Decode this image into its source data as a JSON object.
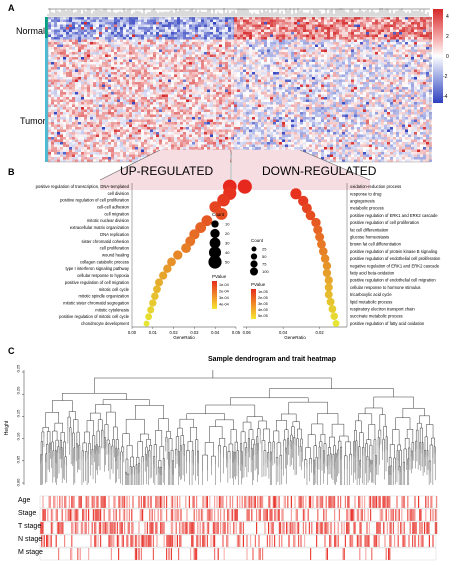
{
  "panel_a": {
    "letter": "A",
    "row_labels": {
      "normal": "Normal",
      "tumor": "Tumor"
    },
    "colorbar_ticks": [
      "4",
      "2",
      "0",
      "-2",
      "-4"
    ],
    "group_colors": {
      "normal": "#00a087",
      "tumor": "#4dbbd5"
    },
    "heatmap_colors": {
      "high": "#d62728",
      "mid": "#ffffff",
      "low": "#2d3fbf"
    }
  },
  "panel_b": {
    "letter": "B",
    "up_title": "UP-REGULATED",
    "down_title": "DOWN-REGULATED",
    "legend_count_title": "Count",
    "legend_pvalue_title": "PValue",
    "up_count_ticks": [
      "10",
      "20",
      "30",
      "40",
      "50"
    ],
    "up_pvalue_ticks": [
      "1e-04",
      "2e-04",
      "3e-04",
      "4e-04"
    ],
    "down_count_ticks": [
      "25",
      "50",
      "75",
      "100"
    ],
    "down_pvalue_ticks": [
      "1e-05",
      "2e-05",
      "3e-05",
      "4e-05",
      "5e-05"
    ]
  },
  "panel_c": {
    "letter": "C",
    "title": "Sample dendrogram and trait heatmap",
    "ylabel": "Height",
    "yticks": [
      "0.25",
      "0.20",
      "0.15",
      "0.10",
      "0.05",
      "0.00"
    ],
    "trait_rows": [
      "Age",
      "Stage",
      "T stage",
      "N stage",
      "M stage"
    ],
    "trait_color": "#e8322a"
  },
  "chart_data": [
    {
      "type": "scatter",
      "panel": "B-left",
      "xlabel": "GeneRatio",
      "x_ticks": [
        "0.00",
        "0.01",
        "0.02",
        "0.03",
        "0.04",
        "0.05"
      ],
      "xlim": [
        0.0,
        0.05
      ],
      "categories": [
        "positive regulation of transcription, DNA-templated",
        "cell division",
        "positive regulation of cell proliferation",
        "cell-cell adhesion",
        "cell migration",
        "mitotic nuclear division",
        "extracellular matrix organization",
        "DNA replication",
        "sister chromatid cohesion",
        "cell proliferation",
        "wound healing",
        "collagen catabolic process",
        "type I interferon signaling pathway",
        "cellular response to hypoxia",
        "positive regulation of cell migration",
        "mitotic cell cycle",
        "mitotic spindle organization",
        "mitotic sister chromatid segregation",
        "mitotic cytokinesis",
        "positive regulation of mitotic cell cycle",
        "chondrocyte development"
      ],
      "x": [
        0.047,
        0.047,
        0.044,
        0.04,
        0.043,
        0.036,
        0.033,
        0.03,
        0.028,
        0.026,
        0.022,
        0.019,
        0.017,
        0.015,
        0.013,
        0.012,
        0.011,
        0.01,
        0.009,
        0.008,
        0.007
      ],
      "count": [
        55,
        50,
        44,
        36,
        40,
        30,
        30,
        26,
        24,
        23,
        20,
        17,
        15,
        14,
        13,
        12,
        11,
        10,
        9,
        8,
        5
      ],
      "pvalue_level": [
        0.0,
        0.05,
        0.1,
        0.15,
        0.2,
        0.25,
        0.3,
        0.35,
        0.4,
        0.45,
        0.5,
        0.55,
        0.6,
        0.65,
        0.7,
        0.75,
        0.8,
        0.85,
        0.9,
        0.95,
        1.0
      ]
    },
    {
      "type": "scatter",
      "panel": "B-right",
      "xlabel": "GeneRatio",
      "x_ticks": [
        "0.06",
        "0.04",
        "0.02"
      ],
      "xlim": [
        0.062,
        0.005
      ],
      "categories": [
        "oxidation-reduction process",
        "response to drug",
        "angiogenesis",
        "metabolic process",
        "positive regulation of ERK1 and ERK2 cascade",
        "positive regulation of cell proliferation",
        "fat cell differentiation",
        "glucose homeostasis",
        "brown fat cell differentiation",
        "positive regulation of protein kinase B signaling",
        "positive regulation of endothelial cell proliferation",
        "negative regulation of ERK1 and ERK2 cascade",
        "fatty acid beta-oxidation",
        "positive regulation of endothelial cell migration",
        "cellular response to hormone stimulus",
        "tricarboxylic acid cycle",
        "lipid metabolic process",
        "respiratory electron transport chain",
        "succinate metabolic process",
        "positive regulation of fatty acid oxidation"
      ],
      "x": [
        0.061,
        0.033,
        0.029,
        0.027,
        0.025,
        0.022,
        0.021,
        0.02,
        0.019,
        0.018,
        0.017,
        0.016,
        0.016,
        0.015,
        0.015,
        0.015,
        0.014,
        0.013,
        0.012,
        0.011
      ],
      "count": [
        110,
        60,
        50,
        45,
        42,
        38,
        36,
        34,
        32,
        30,
        29,
        28,
        27,
        26,
        25,
        24,
        23,
        22,
        20,
        15
      ],
      "pvalue_level": [
        0.0,
        0.05,
        0.1,
        0.15,
        0.2,
        0.26,
        0.32,
        0.37,
        0.42,
        0.47,
        0.52,
        0.57,
        0.62,
        0.67,
        0.72,
        0.77,
        0.82,
        0.87,
        0.93,
        1.0
      ]
    }
  ]
}
